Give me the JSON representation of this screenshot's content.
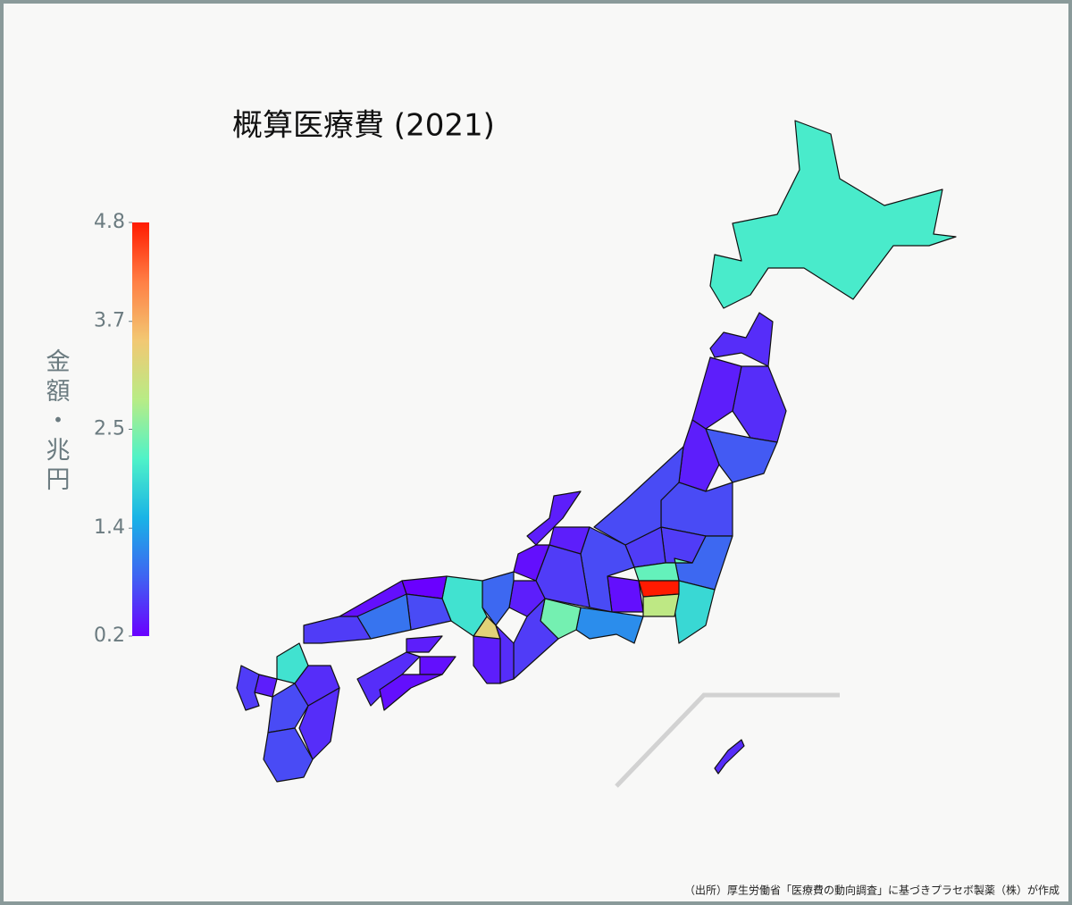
{
  "chart_data": {
    "type": "choropleth",
    "title": "概算医療費 (2021)",
    "colorbar_title": "金額・兆円",
    "values": [
      2.1,
      0.5,
      0.5,
      0.8,
      0.4,
      0.4,
      0.7,
      0.9,
      0.6,
      0.6,
      2.3,
      1.9,
      4.8,
      2.9,
      0.7,
      0.4,
      0.4,
      0.3,
      0.3,
      0.7,
      0.6,
      1.2,
      2.4,
      0.6,
      0.4,
      0.9,
      3.3,
      2.0,
      0.5,
      0.4,
      0.2,
      0.3,
      0.7,
      1.0,
      0.6,
      0.3,
      0.4,
      0.5,
      0.3,
      2.0,
      0.4,
      0.6,
      0.7,
      0.5,
      0.5,
      0.7,
      0.5
    ],
    "colorscale": [
      "#6a00ff",
      "#3f63f2",
      "#19b3e6",
      "#4ff2c8",
      "#b8ec86",
      "#f2c873",
      "#ff7f45",
      "#ff1a00"
    ],
    "clim": [
      0.2,
      4.8
    ],
    "cticks": [
      0.2,
      1.4,
      2.5,
      3.7,
      4.8
    ]
  },
  "source": "（出所）厚生労働省「医療費の動向調査」に基づきプラセボ製薬（株）が作成"
}
